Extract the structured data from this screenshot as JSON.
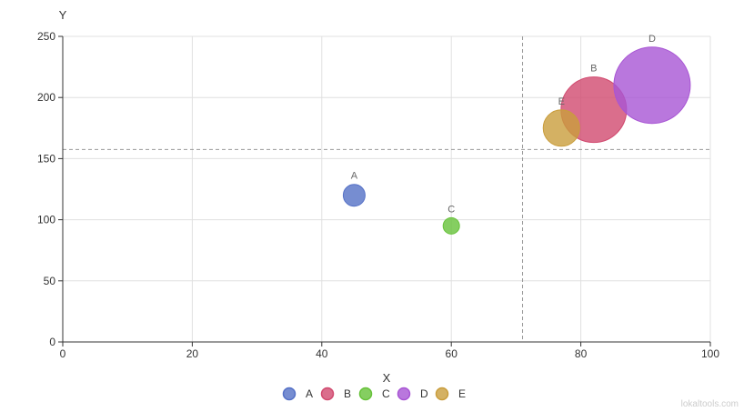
{
  "chart_data": {
    "type": "scatter",
    "subtype": "bubble",
    "xlabel": "X",
    "ylabel": "Y",
    "xlim": [
      0,
      100
    ],
    "ylim": [
      0,
      250
    ],
    "x_ticks": [
      "0",
      "20",
      "40",
      "60",
      "80",
      "100"
    ],
    "y_ticks": [
      "0",
      "50",
      "100",
      "150",
      "200",
      "250"
    ],
    "grid": true,
    "legend_position": "bottom-center",
    "reference_lines": {
      "x": 71,
      "y": 157.5,
      "style": "dashed"
    },
    "series": [
      {
        "name": "A",
        "x": 45,
        "y": 120,
        "size": 12,
        "color": "#5470c6"
      },
      {
        "name": "B",
        "x": 82,
        "y": 190,
        "size": 36,
        "color": "#d14a6f"
      },
      {
        "name": "C",
        "x": 60,
        "y": 95,
        "size": 9,
        "color": "#67c23a"
      },
      {
        "name": "D",
        "x": 91,
        "y": 210,
        "size": 42,
        "color": "#a855d4"
      },
      {
        "name": "E",
        "x": 77,
        "y": 175,
        "size": 20,
        "color": "#c99d3c"
      }
    ],
    "colors": {
      "grid": "#e0e0e0",
      "axis": "#333333",
      "reference_line": "#999999"
    }
  },
  "watermark": "lokaltools.com"
}
